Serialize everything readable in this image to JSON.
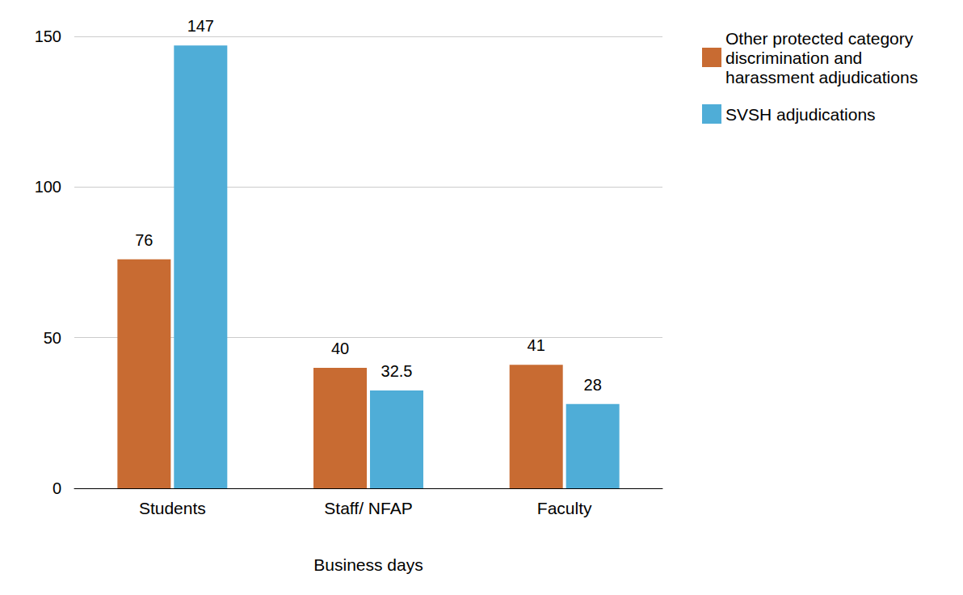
{
  "chart_data": {
    "type": "bar",
    "categories": [
      "Students",
      "Staff/ NFAP",
      "Faculty"
    ],
    "series": [
      {
        "name": "Other protected category discrimination and harassment adjudications",
        "color": "#c86b32",
        "values": [
          76,
          40,
          41
        ]
      },
      {
        "name": "SVSH adjudications",
        "color": "#4fadd7",
        "values": [
          147,
          32.5,
          28
        ]
      }
    ],
    "x_label": "Business days",
    "ylim": [
      0,
      150
    ],
    "yticks": [
      0,
      50,
      100,
      150
    ],
    "grid": true,
    "legend": "right",
    "data_labels": true
  }
}
